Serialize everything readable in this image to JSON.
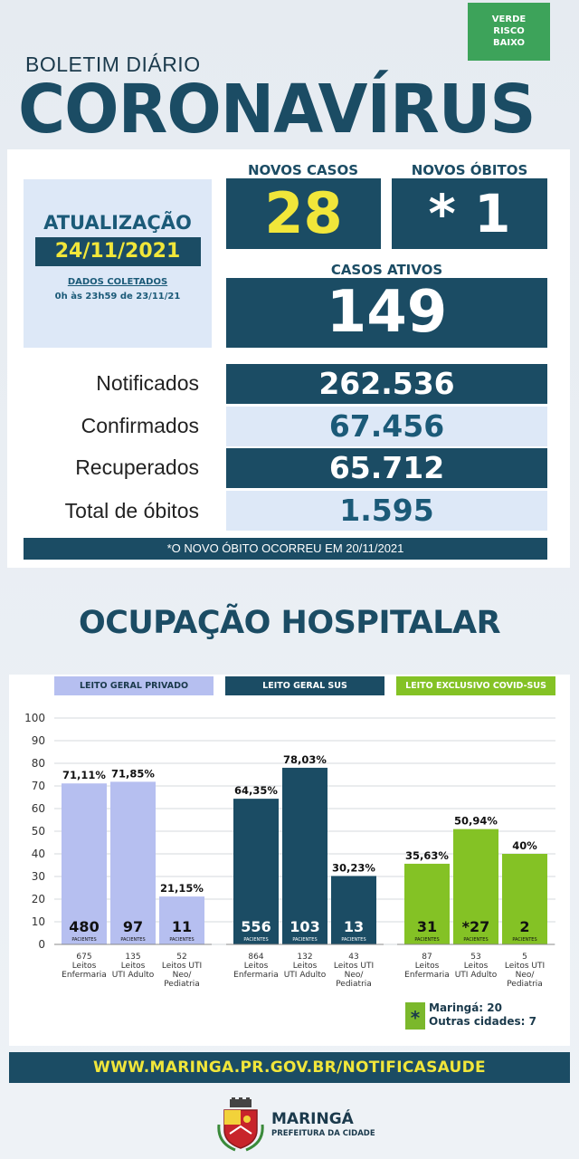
{
  "risk_badge": {
    "lines": [
      "VERDE",
      "RISCO",
      "BAIXO"
    ],
    "color": "#3da35a"
  },
  "header": {
    "subtitle": "BOLETIM DIÁRIO",
    "title": "CORONAVÍRUS"
  },
  "update": {
    "label": "ATUALIZAÇÃO",
    "date": "24/11/2021",
    "collected_label": "DADOS COLETADOS",
    "collected_range": "0h às 23h59 de 23/11/21"
  },
  "new_cases": {
    "label": "NOVOS CASOS",
    "value": "28"
  },
  "new_deaths": {
    "label": "NOVOS ÓBITOS",
    "value": "* 1"
  },
  "active_cases": {
    "label": "CASOS ATIVOS",
    "value": "149"
  },
  "stats": [
    {
      "label": "Notificados",
      "value": "262.536"
    },
    {
      "label": "Confirmados",
      "value": "67.456"
    },
    {
      "label": "Recuperados",
      "value": "65.712"
    },
    {
      "label": "Total de óbitos",
      "value": "1.595"
    }
  ],
  "footnote": "*O NOVO ÓBITO OCORREU EM 20/11/2021",
  "occupancy_title": "OCUPAÇÃO HOSPITALAR",
  "patients_word": "PACIENTES",
  "colors": {
    "dark": "#1b4c64",
    "lilac": "#b6bff0",
    "green": "#84c225",
    "yellow": "#f1e63a"
  },
  "chart_data": {
    "type": "bar",
    "y_ticks": [
      "0",
      "10",
      "20",
      "30",
      "40",
      "50",
      "60",
      "70",
      "80",
      "90",
      "100"
    ],
    "ylim": [
      0,
      100
    ],
    "grid": true,
    "groups": [
      {
        "name": "LEITO GERAL PRIVADO",
        "color": "lilac",
        "bars": [
          {
            "percent": 71.11,
            "percent_label": "71,11%",
            "patients": "480",
            "beds": "675",
            "caption": [
              "Leitos",
              "Enfermaria"
            ]
          },
          {
            "percent": 71.85,
            "percent_label": "71,85%",
            "patients": "97",
            "beds": "135",
            "caption": [
              "Leitos",
              "UTI Adulto"
            ]
          },
          {
            "percent": 21.15,
            "percent_label": "21,15%",
            "patients": "11",
            "beds": "52",
            "caption": [
              "Leitos UTI",
              "Neo/",
              "Pediatria"
            ]
          }
        ]
      },
      {
        "name": "LEITO GERAL SUS",
        "color": "dark",
        "bars": [
          {
            "percent": 64.35,
            "percent_label": "64,35%",
            "patients": "556",
            "beds": "864",
            "caption": [
              "Leitos",
              "Enfermaria"
            ]
          },
          {
            "percent": 78.03,
            "percent_label": "78,03%",
            "patients": "103",
            "beds": "132",
            "caption": [
              "Leitos",
              "UTI Adulto"
            ]
          },
          {
            "percent": 30.23,
            "percent_label": "30,23%",
            "patients": "13",
            "beds": "43",
            "caption": [
              "Leitos UTI",
              "Neo/",
              "Pediatria"
            ]
          }
        ]
      },
      {
        "name": "LEITO EXCLUSIVO COVID-SUS",
        "color": "green",
        "bars": [
          {
            "percent": 35.63,
            "percent_label": "35,63%",
            "patients": "31",
            "beds": "87",
            "caption": [
              "Leitos",
              "Enfermaria"
            ]
          },
          {
            "percent": 50.94,
            "percent_label": "50,94%",
            "patients": "*27",
            "beds": "53",
            "caption": [
              "Leitos",
              "UTI Adulto"
            ]
          },
          {
            "percent": 40,
            "percent_label": "40%",
            "patients": "2",
            "beds": "5",
            "caption": [
              "Leitos UTI",
              "Neo/",
              "Pediatria"
            ]
          }
        ]
      }
    ]
  },
  "legend": {
    "marker": "*",
    "line1": "Maringá: 20",
    "line2": "Outras cidades: 7"
  },
  "url": "WWW.MARINGA.PR.GOV.BR/NOTIFICASAUDE",
  "logo": {
    "name": "MARINGÁ",
    "sub": "PREFEITURA DA CIDADE"
  }
}
